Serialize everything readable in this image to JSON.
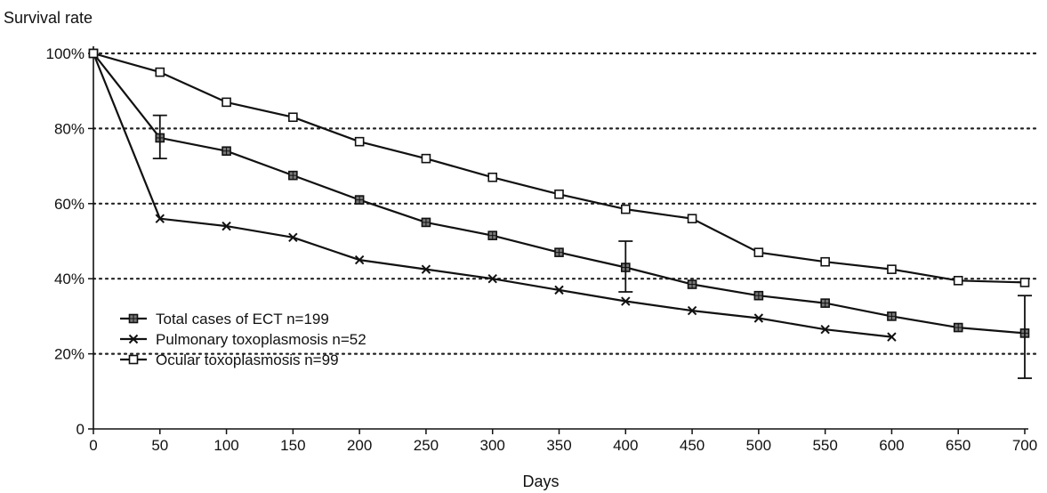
{
  "chart_data": {
    "type": "line",
    "ylabel": "Survival rate",
    "xlabel": "Days",
    "xlim": [
      0,
      700
    ],
    "ylim": [
      0,
      100
    ],
    "x_ticks": [
      0,
      50,
      100,
      150,
      200,
      250,
      300,
      350,
      400,
      450,
      500,
      550,
      600,
      650,
      700
    ],
    "y_ticks": [
      {
        "value": 0,
        "label": "0"
      },
      {
        "value": 20,
        "label": "20%"
      },
      {
        "value": 40,
        "label": "40%"
      },
      {
        "value": 60,
        "label": "60%"
      },
      {
        "value": 80,
        "label": "80%"
      },
      {
        "value": 100,
        "label": "100%"
      }
    ],
    "grid": "horizontal dotted",
    "legend_position": "bottom-left",
    "series": [
      {
        "name": "Total cases of ECT  n=199",
        "marker": "hatched-square",
        "x": [
          0,
          50,
          100,
          150,
          200,
          250,
          300,
          350,
          400,
          450,
          500,
          550,
          600,
          650,
          700
        ],
        "y": [
          100,
          77.5,
          74,
          67.5,
          61,
          55,
          51.5,
          47,
          43,
          38.5,
          35.5,
          33.5,
          30,
          27,
          25.5
        ],
        "error_bars": [
          {
            "x": 50,
            "low": 72,
            "high": 83.5
          },
          {
            "x": 400,
            "low": 36.5,
            "high": 50
          },
          {
            "x": 700,
            "low": 13.5,
            "high": 35.5
          }
        ]
      },
      {
        "name": "Pulmonary toxoplasmosis  n=52",
        "marker": "x",
        "x": [
          0,
          50,
          100,
          150,
          200,
          250,
          300,
          350,
          400,
          450,
          500,
          550,
          600
        ],
        "y": [
          100,
          56,
          54,
          51,
          45,
          42.5,
          40,
          37,
          34,
          31.5,
          29.5,
          26.5,
          24.5
        ]
      },
      {
        "name": "Ocular toxoplasmosis  n=99",
        "marker": "open-square",
        "x": [
          0,
          50,
          100,
          150,
          200,
          250,
          300,
          350,
          400,
          450,
          500,
          550,
          600,
          650,
          700
        ],
        "y": [
          100,
          95,
          87,
          83,
          76.5,
          72,
          67,
          62.5,
          58.5,
          56,
          47,
          44.5,
          42.5,
          39.5,
          39
        ]
      }
    ]
  }
}
